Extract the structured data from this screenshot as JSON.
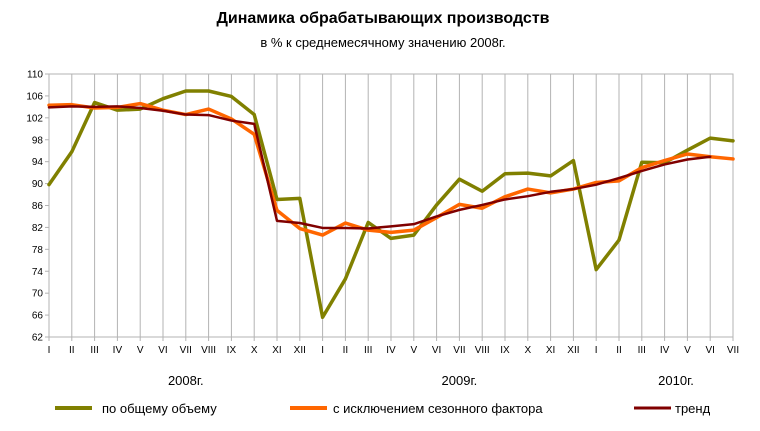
{
  "chart_data": {
    "type": "line",
    "title": "Динамика обрабатывающих производств",
    "subtitle": "в % к среднемесячному значению 2008г.",
    "xlabel": "",
    "ylabel": "",
    "ylim": [
      62,
      110
    ],
    "yticks": [
      62,
      66,
      70,
      74,
      78,
      82,
      86,
      90,
      94,
      98,
      102,
      106,
      110
    ],
    "grid": "vertical",
    "legend": "bottom",
    "categories": [
      "I",
      "II",
      "III",
      "IV",
      "V",
      "VI",
      "VII",
      "VIII",
      "IX",
      "X",
      "XI",
      "XII",
      "I",
      "II",
      "III",
      "IV",
      "V",
      "VI",
      "VII",
      "VIII",
      "IX",
      "X",
      "XI",
      "XII",
      "I",
      "II",
      "III",
      "IV",
      "V",
      "VI",
      "VII"
    ],
    "year_labels": [
      {
        "label": "2008г.",
        "center_index": 6
      },
      {
        "label": "2009г.",
        "center_index": 18
      },
      {
        "label": "2010г.",
        "center_index": 27.5
      }
    ],
    "series": [
      {
        "name": "по общему объему",
        "color": "#808000",
        "values": [
          89.8,
          95.8,
          104.8,
          103.4,
          103.6,
          105.5,
          106.9,
          106.9,
          105.9,
          102.6,
          87.1,
          87.3,
          65.6,
          72.6,
          82.9,
          80.0,
          80.6,
          86.1,
          90.8,
          88.6,
          91.8,
          91.9,
          91.4,
          94.2,
          74.3,
          79.7,
          93.9,
          93.8,
          96.1,
          98.3,
          97.8
        ]
      },
      {
        "name": "с исключением сезонного фактора",
        "color": "#ff6600",
        "values": [
          104.3,
          104.4,
          103.8,
          103.9,
          104.6,
          103.4,
          102.6,
          103.6,
          101.8,
          99.0,
          85.1,
          81.8,
          80.6,
          82.8,
          81.5,
          81.1,
          81.5,
          83.8,
          86.2,
          85.5,
          87.6,
          89.0,
          88.3,
          89.0,
          90.2,
          90.5,
          92.9,
          94.2,
          95.4,
          94.9,
          94.5
        ]
      },
      {
        "name": "тренд",
        "color": "#800000",
        "values": [
          103.9,
          104.1,
          104.0,
          104.1,
          103.8,
          103.3,
          102.6,
          102.5,
          101.5,
          100.9,
          83.2,
          82.8,
          81.9,
          81.9,
          81.8,
          82.2,
          82.6,
          84.0,
          85.2,
          86.1,
          87.1,
          87.7,
          88.5,
          89.0,
          89.8,
          91.0,
          92.3,
          93.5,
          94.4,
          94.9,
          null
        ]
      }
    ]
  }
}
